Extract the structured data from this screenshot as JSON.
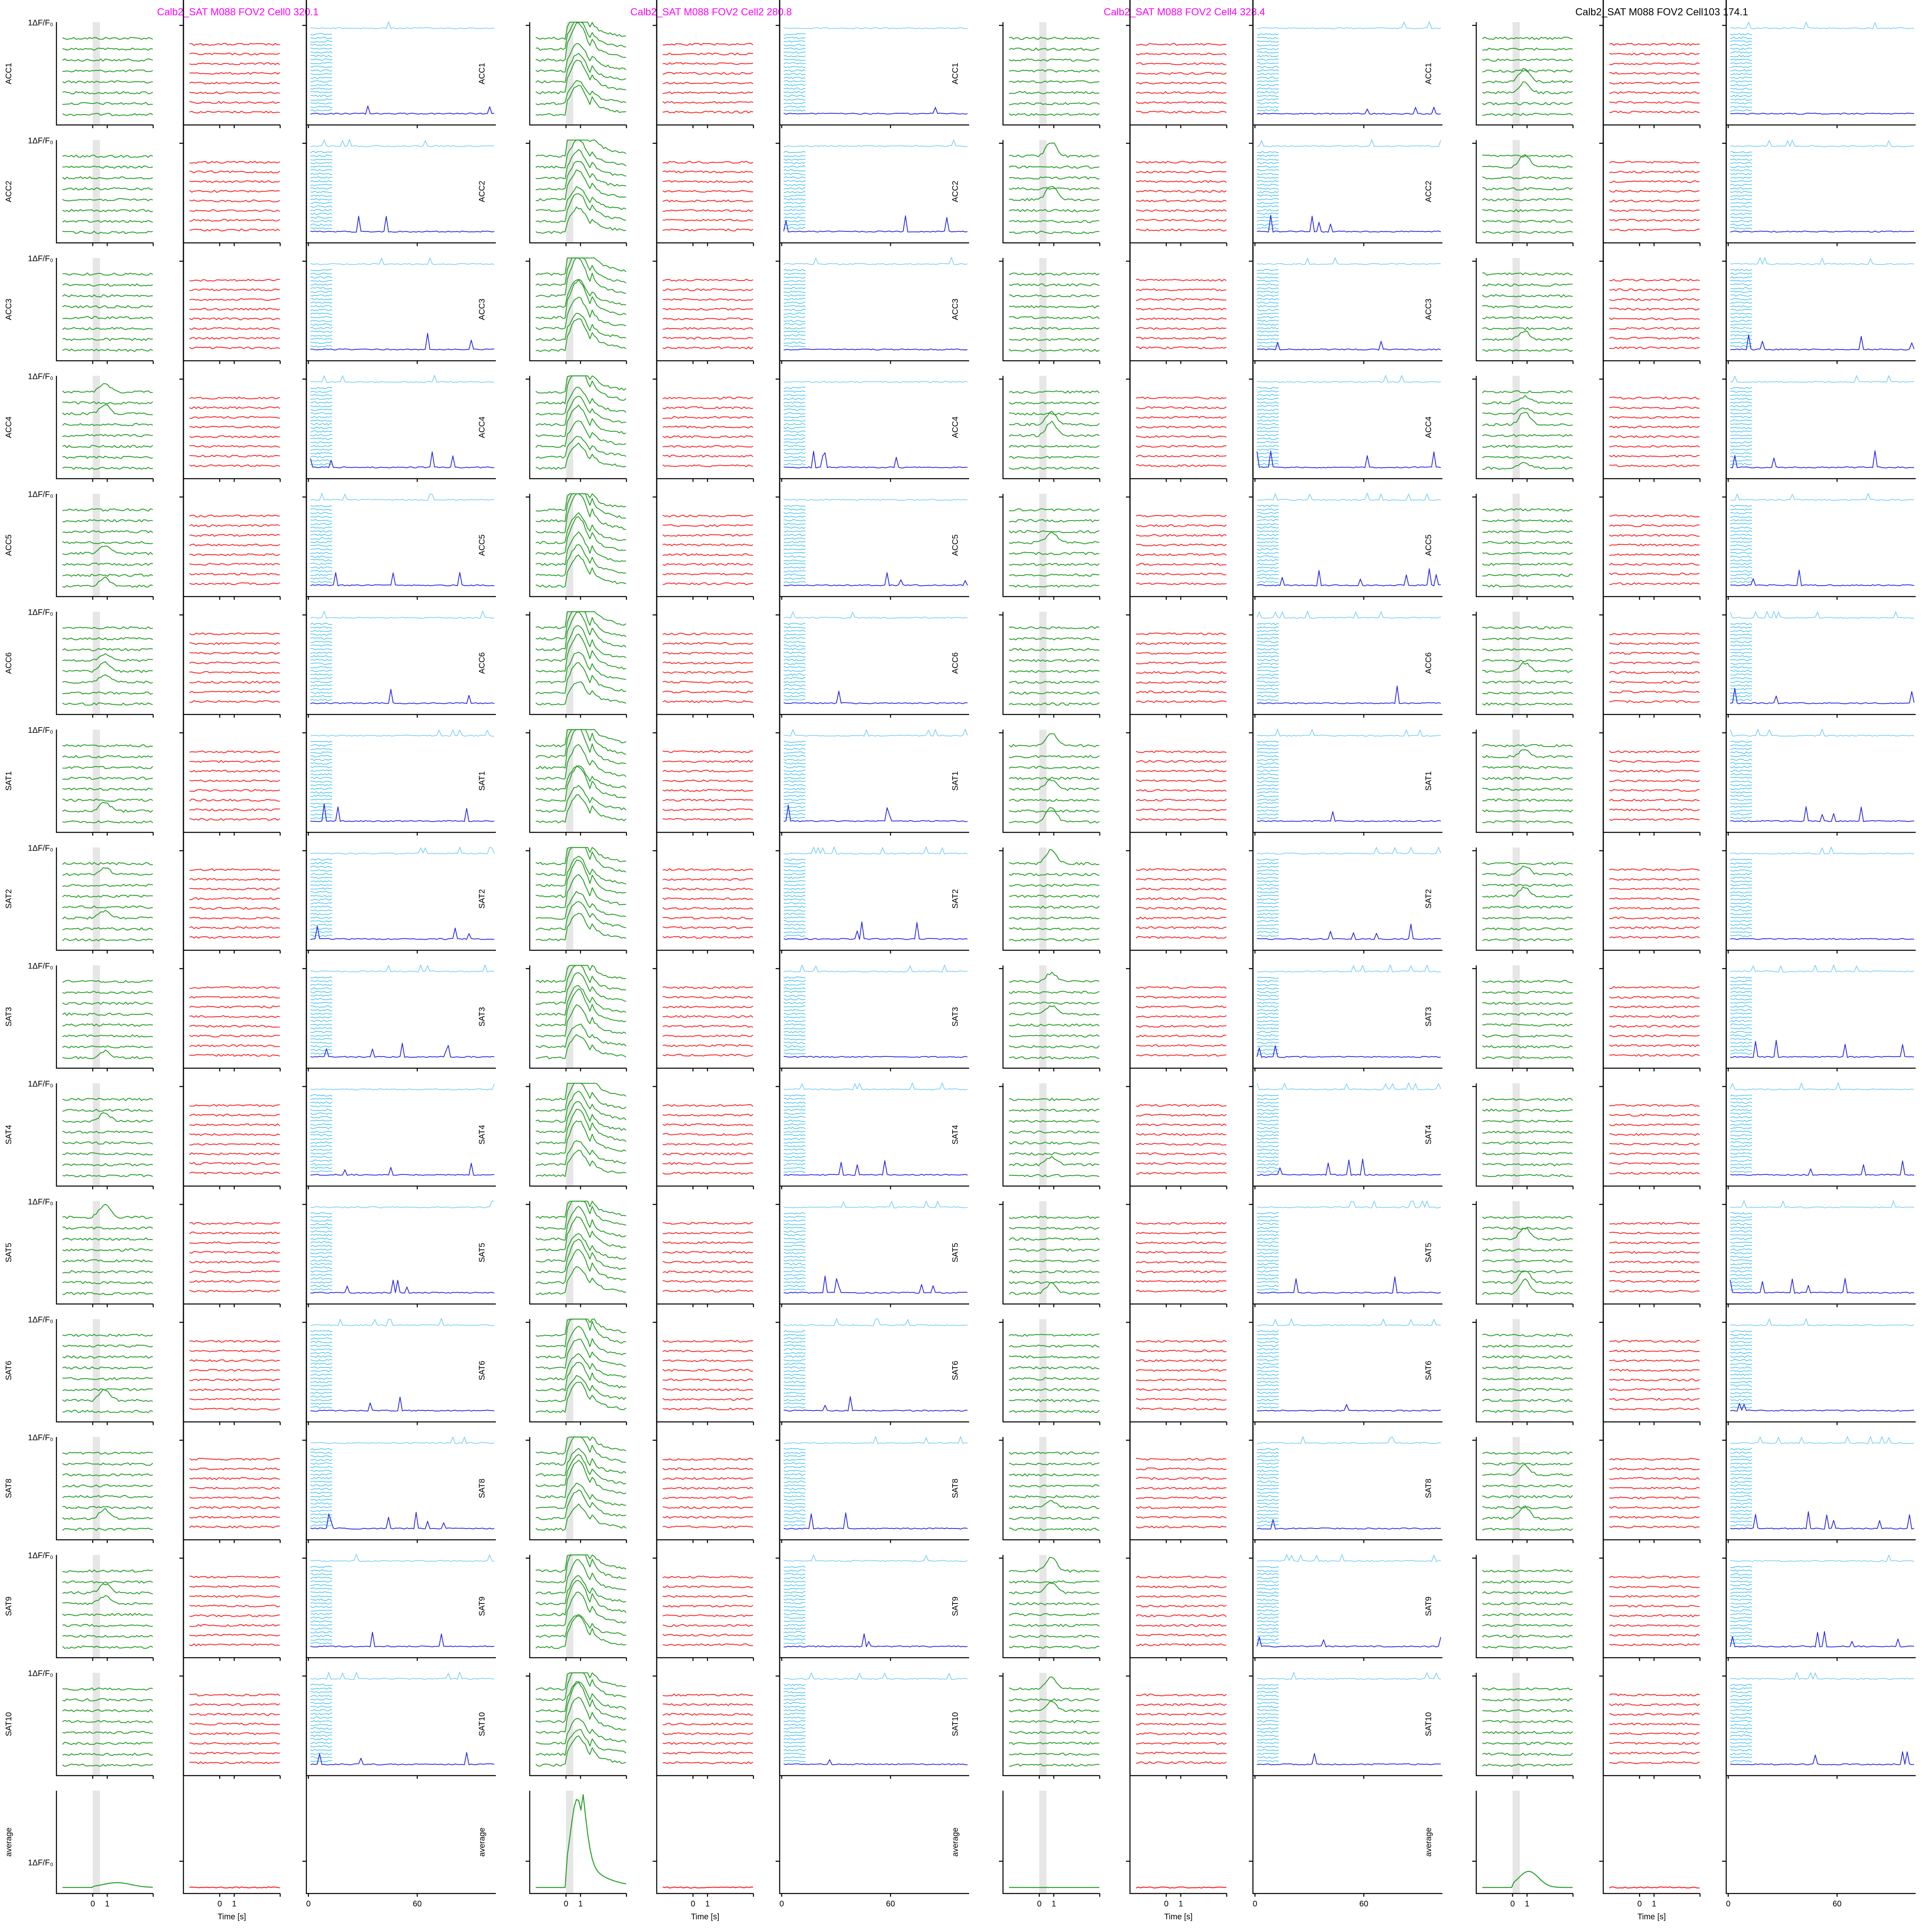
{
  "chart_data": {
    "type": "line",
    "cells": [
      {
        "title": "Calb2_SAT M088 FOV2 Cell0 320.1",
        "title_color": "#ff00ff",
        "responsive": false
      },
      {
        "title": "Calb2_SAT M088 FOV2 Cell2 280.8",
        "title_color": "#ff00ff",
        "responsive": true
      },
      {
        "title": "Calb2_SAT M088 FOV2 Cell4 328.4",
        "title_color": "#ff00ff",
        "responsive": false
      },
      {
        "title": "Calb2_SAT M088 FOV2 Cell103 174.1",
        "title_color": "#000000",
        "responsive": false
      }
    ],
    "rows": [
      "ACC1",
      "ACC2",
      "ACC3",
      "ACC4",
      "ACC5",
      "ACC6",
      "SAT1",
      "SAT2",
      "SAT3",
      "SAT4",
      "SAT5",
      "SAT6",
      "SAT8",
      "SAT9",
      "SAT10",
      "average"
    ],
    "scale_bar_label": "1ΔF/F₀",
    "panels": {
      "evoked": {
        "color": "#2ca02c",
        "shade_color": "#e6e6e6",
        "xticks": [
          "0",
          "1"
        ]
      },
      "control": {
        "color": "#ff2a2a",
        "xticks": [
          "0",
          "1"
        ],
        "xlabel": "Time [s]"
      },
      "session": {
        "trial_color": "#33bbee",
        "average_color": "#87d3f5",
        "summary_color": "#2a2ae6",
        "xticks": [
          "0",
          "60"
        ]
      }
    }
  }
}
